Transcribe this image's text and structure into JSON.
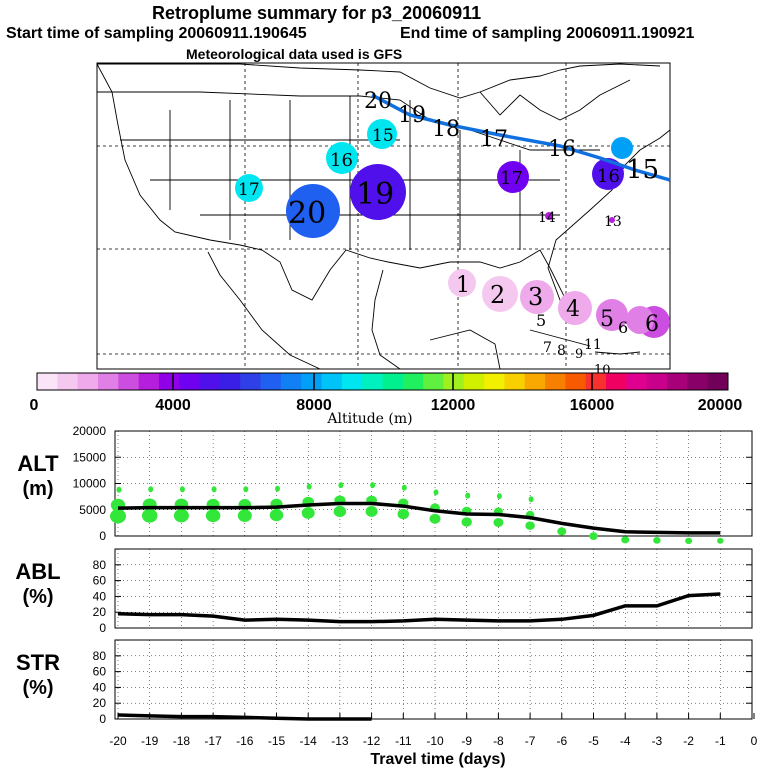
{
  "header": {
    "title": "Retroplume summary for p3_20060911",
    "start": "Start time of sampling 20060911.190645",
    "end": "End time of sampling 20060911.190921",
    "met": "Meteorological data used is GFS"
  },
  "colorbar": {
    "ticks": [
      "0",
      "4000",
      "8000",
      "12000",
      "16000",
      "20000"
    ],
    "label": "Altitude (m)",
    "colors": [
      "#fbe3f8",
      "#f5c8f0",
      "#eeaaea",
      "#e080e6",
      "#cc4ee0",
      "#b41edc",
      "#9000e8",
      "#7000f0",
      "#5010ec",
      "#3a20e6",
      "#3040e8",
      "#2060f0",
      "#1080f4",
      "#00a0f6",
      "#00c4f8",
      "#00e6f0",
      "#00f0c0",
      "#00f090",
      "#20f060",
      "#60f040",
      "#a0f020",
      "#d0f000",
      "#f0f000",
      "#f8d000",
      "#f8a800",
      "#f88000",
      "#f85a00",
      "#f83030",
      "#f00060",
      "#e00090",
      "#c8008c",
      "#a80078",
      "#880068",
      "#700058"
    ]
  },
  "map": {
    "track_labels": [
      "20",
      "19",
      "18",
      "17",
      "16",
      "15"
    ],
    "plume_labels": {
      "west": [
        "15",
        "16",
        "17",
        "20",
        "19"
      ],
      "east": [
        "17",
        "16",
        "14",
        "13"
      ],
      "south": [
        "1",
        "2",
        "3",
        "4",
        "5",
        "6",
        "5",
        "6",
        "7",
        "8",
        "9",
        "11",
        "10"
      ]
    }
  },
  "chart_data": [
    {
      "type": "line",
      "name": "ALT",
      "ylabel": "ALT\n(m)",
      "ylabel_top": "ALT",
      "ylabel_unit": "(m)",
      "ylim": [
        0,
        20000
      ],
      "yticks": [
        "0",
        "5000",
        "10000",
        "15000",
        "20000"
      ],
      "x": [
        -20,
        -19,
        -18,
        -17,
        -16,
        -15,
        -14,
        -13,
        -12,
        -11,
        -10,
        -9,
        -8,
        -7,
        -6,
        -5,
        -4,
        -3,
        -2,
        -1
      ],
      "values": [
        5300,
        5400,
        5400,
        5400,
        5400,
        5500,
        5900,
        6200,
        6200,
        5700,
        4800,
        4200,
        4100,
        3500,
        2400,
        1500,
        800,
        700,
        600,
        600
      ],
      "line_color": "#000000",
      "scatter_color": "#33e63a"
    },
    {
      "type": "line",
      "name": "ABL",
      "ylabel_top": "ABL",
      "ylabel_unit": "(%)",
      "ylim": [
        0,
        100
      ],
      "yticks": [
        "0",
        "20",
        "40",
        "60",
        "80"
      ],
      "x": [
        -20,
        -19,
        -18,
        -17,
        -16,
        -15,
        -14,
        -13,
        -12,
        -11,
        -10,
        -9,
        -8,
        -7,
        -6,
        -5,
        -4,
        -3,
        -2,
        -1
      ],
      "values": [
        18,
        17,
        17,
        15,
        10,
        11,
        10,
        8,
        8,
        9,
        11,
        10,
        9,
        9,
        11,
        16,
        28,
        28,
        41,
        43
      ]
    },
    {
      "type": "line",
      "name": "STR",
      "ylabel_top": "STR",
      "ylabel_unit": "(%)",
      "ylim": [
        0,
        100
      ],
      "yticks": [
        "0",
        "20",
        "40",
        "60",
        "80"
      ],
      "x": [
        -20,
        -19,
        -18,
        -17,
        -16,
        -15,
        -14,
        -13,
        -12
      ],
      "values": [
        5,
        4,
        3,
        3,
        2,
        1,
        0,
        0,
        0
      ]
    }
  ],
  "xaxis": {
    "ticks": [
      "-20",
      "-19",
      "-18",
      "-17",
      "-16",
      "-15",
      "-14",
      "-13",
      "-12",
      "-11",
      "-10",
      "-9",
      "-8",
      "-7",
      "-6",
      "-5",
      "-4",
      "-3",
      "-2",
      "-1",
      "0"
    ],
    "label": "Travel time (days)"
  }
}
